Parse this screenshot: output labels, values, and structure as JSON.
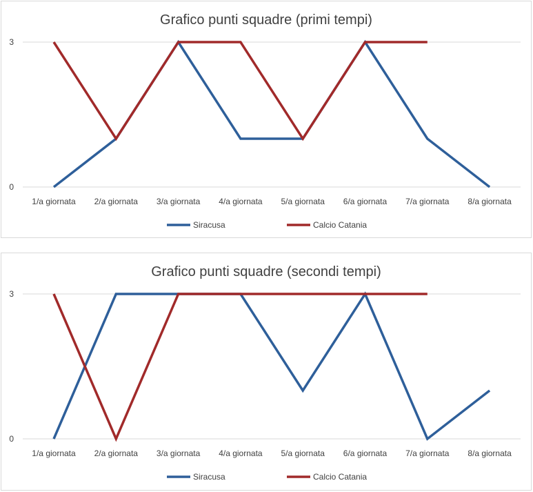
{
  "chart_data": [
    {
      "type": "line",
      "title": "Grafico punti squadre (primi tempi)",
      "xlabel": "",
      "ylabel": "",
      "categories": [
        "1/a giornata",
        "2/a giornata",
        "3/a giornata",
        "4/a giornata",
        "5/a giornata",
        "6/a giornata",
        "7/a giornata",
        "8/a giornata"
      ],
      "yticks": [
        0,
        3
      ],
      "ylim": [
        0,
        3
      ],
      "grid": true,
      "legend": "bottom",
      "series": [
        {
          "name": "Siracusa",
          "color": "#2e5f9a",
          "values": [
            0,
            1,
            3,
            1,
            1,
            3,
            1,
            0
          ]
        },
        {
          "name": "Calcio Catania",
          "color": "#a12a2a",
          "values": [
            3,
            1,
            3,
            3,
            1,
            3,
            3,
            null
          ]
        }
      ]
    },
    {
      "type": "line",
      "title": "Grafico punti squadre (secondi tempi)",
      "xlabel": "",
      "ylabel": "",
      "categories": [
        "1/a giornata",
        "2/a giornata",
        "3/a giornata",
        "4/a giornata",
        "5/a giornata",
        "6/a giornata",
        "7/a giornata",
        "8/a giornata"
      ],
      "yticks": [
        0,
        3
      ],
      "ylim": [
        0,
        3
      ],
      "grid": true,
      "legend": "bottom",
      "series": [
        {
          "name": "Siracusa",
          "color": "#2e5f9a",
          "values": [
            0,
            3,
            3,
            3,
            1,
            3,
            0,
            1
          ]
        },
        {
          "name": "Calcio Catania",
          "color": "#a12a2a",
          "values": [
            3,
            0,
            3,
            3,
            3,
            3,
            3,
            null
          ]
        }
      ]
    }
  ]
}
